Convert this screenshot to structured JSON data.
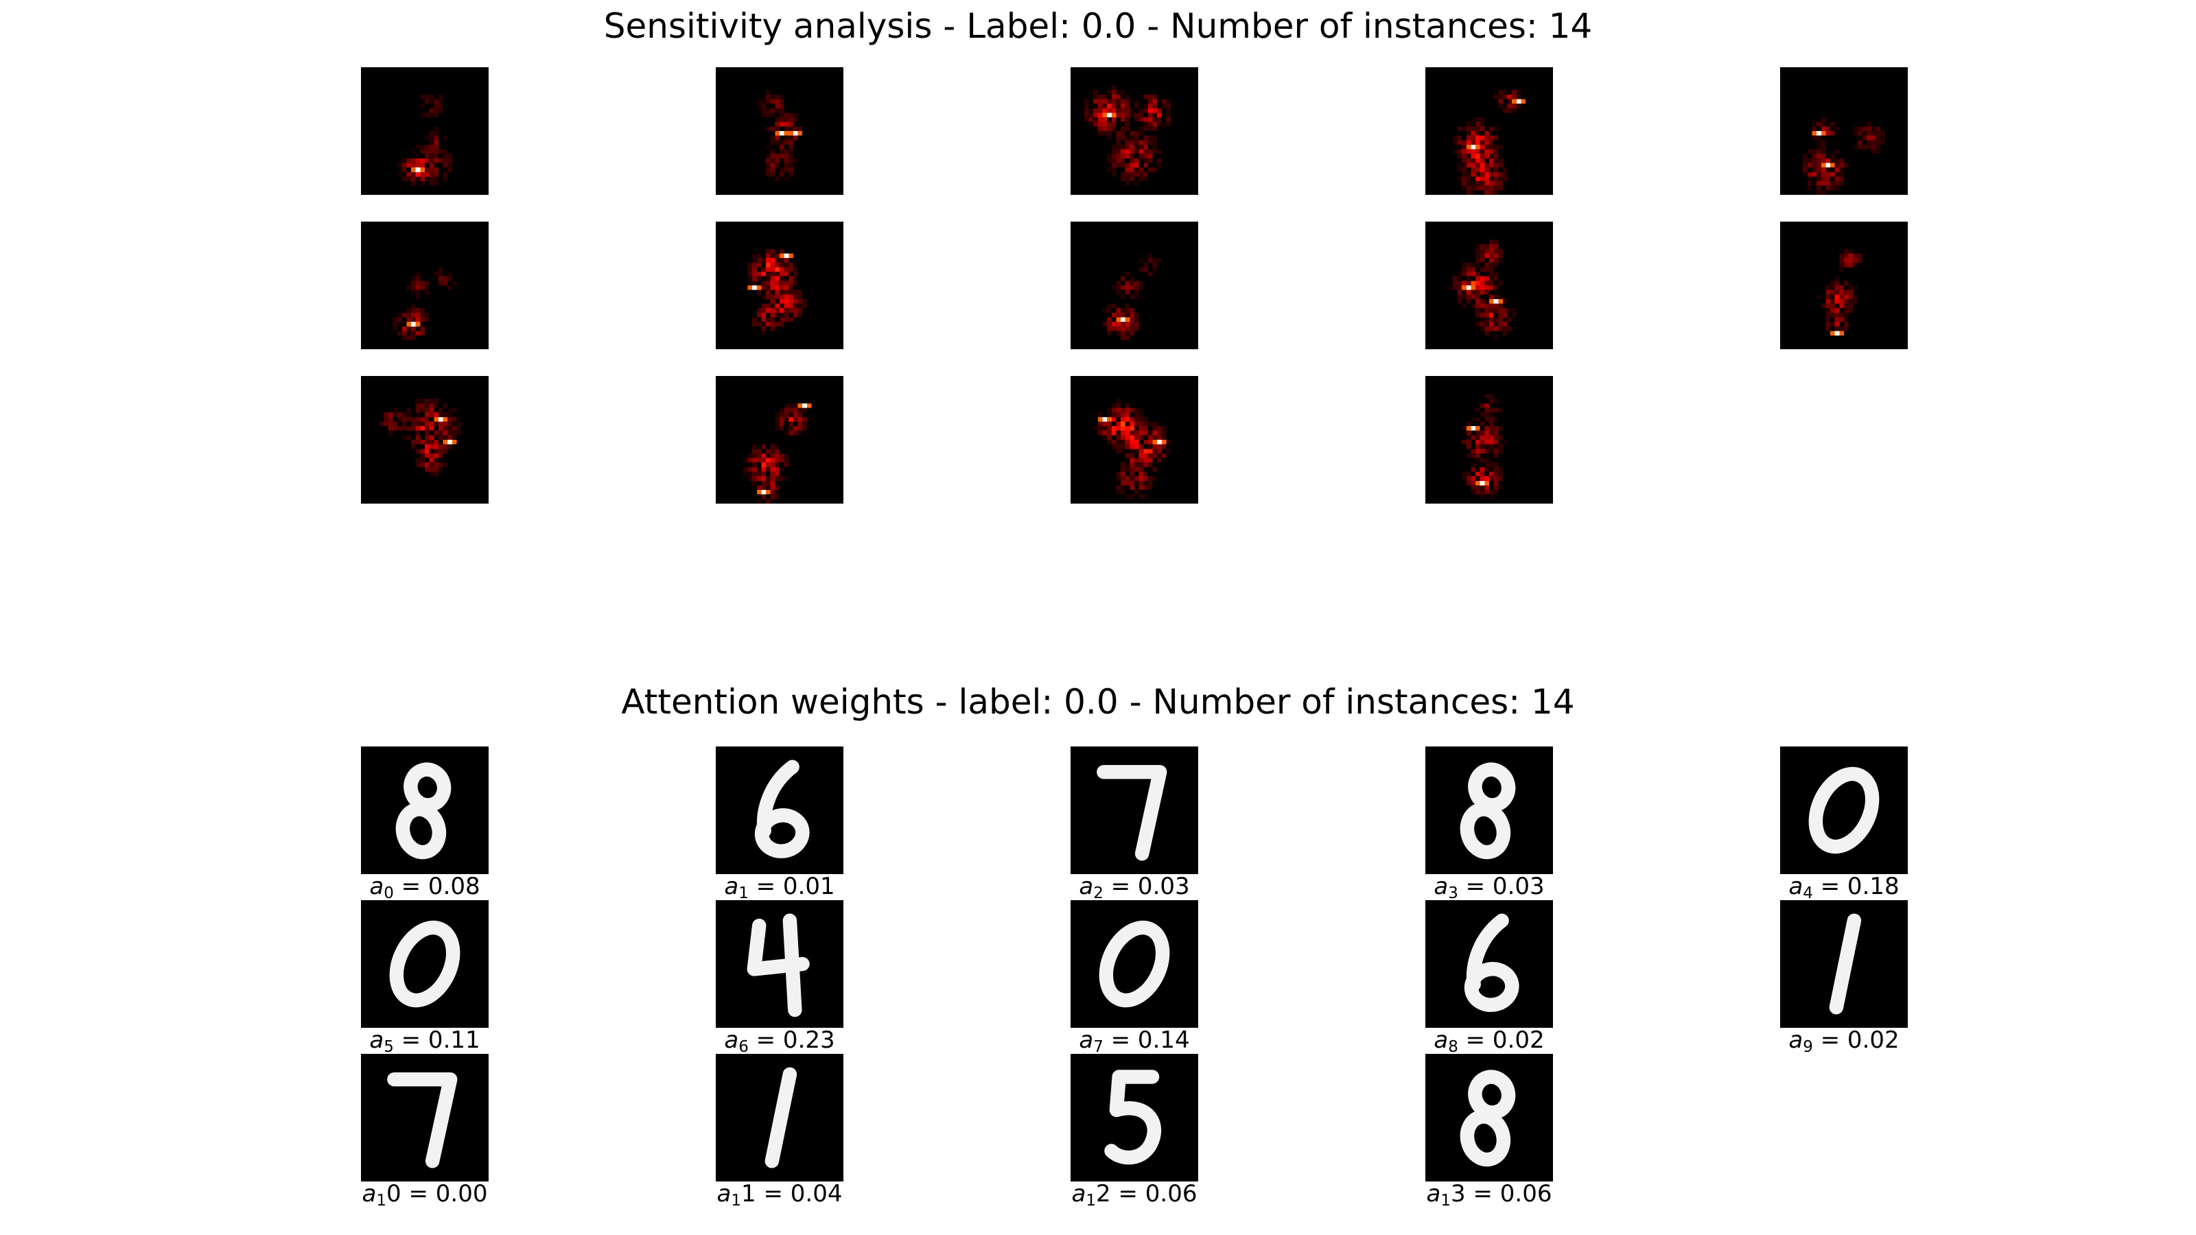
{
  "sensitivity": {
    "title": "Sensitivity analysis - Label: 0.0 - Number of instances: 14",
    "colormap": "hot",
    "tiles": [
      {
        "id": 0,
        "blobs": [
          [
            0.42,
            0.8,
            0.14,
            0.5
          ],
          [
            0.55,
            0.75,
            0.22,
            0.3
          ],
          [
            0.6,
            0.55,
            0.1,
            0.25
          ],
          [
            0.55,
            0.3,
            0.15,
            0.2
          ]
        ],
        "hot": [
          [
            0.45,
            0.8
          ]
        ]
      },
      {
        "id": 1,
        "blobs": [
          [
            0.55,
            0.5,
            0.16,
            0.5
          ],
          [
            0.45,
            0.3,
            0.14,
            0.3
          ],
          [
            0.5,
            0.75,
            0.18,
            0.3
          ]
        ],
        "hot": [
          [
            0.5,
            0.5
          ],
          [
            0.62,
            0.5
          ]
        ]
      },
      {
        "id": 2,
        "blobs": [
          [
            0.3,
            0.35,
            0.22,
            0.6
          ],
          [
            0.65,
            0.35,
            0.18,
            0.5
          ],
          [
            0.5,
            0.7,
            0.25,
            0.5
          ]
        ],
        "hot": [
          [
            0.3,
            0.38
          ]
        ]
      },
      {
        "id": 3,
        "blobs": [
          [
            0.4,
            0.6,
            0.22,
            0.55
          ],
          [
            0.65,
            0.25,
            0.12,
            0.5
          ],
          [
            0.45,
            0.85,
            0.22,
            0.5
          ]
        ],
        "hot": [
          [
            0.38,
            0.62
          ],
          [
            0.72,
            0.25
          ]
        ]
      },
      {
        "id": 4,
        "blobs": [
          [
            0.35,
            0.8,
            0.22,
            0.5
          ],
          [
            0.35,
            0.5,
            0.12,
            0.4
          ],
          [
            0.7,
            0.55,
            0.16,
            0.3
          ]
        ],
        "hot": [
          [
            0.32,
            0.5
          ],
          [
            0.38,
            0.78
          ]
        ]
      },
      {
        "id": 5,
        "blobs": [
          [
            0.4,
            0.8,
            0.16,
            0.55
          ],
          [
            0.45,
            0.5,
            0.12,
            0.25
          ],
          [
            0.65,
            0.45,
            0.12,
            0.2
          ]
        ],
        "hot": [
          [
            0.4,
            0.8
          ]
        ]
      },
      {
        "id": 6,
        "blobs": [
          [
            0.45,
            0.4,
            0.22,
            0.7
          ],
          [
            0.55,
            0.65,
            0.18,
            0.5
          ],
          [
            0.4,
            0.75,
            0.15,
            0.4
          ]
        ],
        "hot": [
          [
            0.55,
            0.28
          ],
          [
            0.32,
            0.52
          ]
        ]
      },
      {
        "id": 7,
        "blobs": [
          [
            0.4,
            0.78,
            0.18,
            0.5
          ],
          [
            0.45,
            0.5,
            0.14,
            0.3
          ],
          [
            0.62,
            0.35,
            0.12,
            0.2
          ]
        ],
        "hot": [
          [
            0.4,
            0.78
          ]
        ]
      },
      {
        "id": 8,
        "blobs": [
          [
            0.4,
            0.5,
            0.22,
            0.6
          ],
          [
            0.55,
            0.75,
            0.18,
            0.5
          ],
          [
            0.5,
            0.25,
            0.14,
            0.4
          ]
        ],
        "hot": [
          [
            0.33,
            0.52
          ],
          [
            0.55,
            0.62
          ]
        ]
      },
      {
        "id": 9,
        "blobs": [
          [
            0.45,
            0.6,
            0.18,
            0.5
          ],
          [
            0.55,
            0.3,
            0.12,
            0.4
          ],
          [
            0.45,
            0.8,
            0.12,
            0.4
          ]
        ],
        "hot": [
          [
            0.44,
            0.88
          ]
        ]
      },
      {
        "id": 10,
        "blobs": [
          [
            0.55,
            0.4,
            0.25,
            0.6
          ],
          [
            0.55,
            0.65,
            0.15,
            0.5
          ],
          [
            0.25,
            0.35,
            0.12,
            0.4
          ]
        ],
        "hot": [
          [
            0.62,
            0.33
          ],
          [
            0.68,
            0.5
          ]
        ]
      },
      {
        "id": 11,
        "blobs": [
          [
            0.4,
            0.7,
            0.2,
            0.6
          ],
          [
            0.6,
            0.35,
            0.15,
            0.5
          ],
          [
            0.4,
            0.9,
            0.12,
            0.4
          ]
        ],
        "hot": [
          [
            0.68,
            0.24
          ],
          [
            0.38,
            0.92
          ]
        ]
      },
      {
        "id": 12,
        "blobs": [
          [
            0.4,
            0.4,
            0.22,
            0.7
          ],
          [
            0.6,
            0.55,
            0.22,
            0.6
          ],
          [
            0.5,
            0.8,
            0.2,
            0.4
          ]
        ],
        "hot": [
          [
            0.28,
            0.33
          ],
          [
            0.68,
            0.52
          ]
        ]
      },
      {
        "id": 13,
        "blobs": [
          [
            0.45,
            0.5,
            0.2,
            0.5
          ],
          [
            0.45,
            0.8,
            0.18,
            0.5
          ],
          [
            0.5,
            0.25,
            0.12,
            0.3
          ]
        ],
        "hot": [
          [
            0.45,
            0.85
          ],
          [
            0.36,
            0.4
          ]
        ]
      }
    ]
  },
  "attention": {
    "title": "Attention weights - label: 0.0 - Number of instances: 14",
    "items": [
      {
        "digit": "8",
        "sym": "a",
        "sub": "0",
        "rest": " = 0.08"
      },
      {
        "digit": "6",
        "sym": "a",
        "sub": "1",
        "rest": " = 0.01"
      },
      {
        "digit": "7",
        "sym": "a",
        "sub": "2",
        "rest": " = 0.03"
      },
      {
        "digit": "8",
        "sym": "a",
        "sub": "3",
        "rest": " = 0.03"
      },
      {
        "digit": "0",
        "sym": "a",
        "sub": "4",
        "rest": " = 0.18"
      },
      {
        "digit": "0",
        "sym": "a",
        "sub": "5",
        "rest": " = 0.11"
      },
      {
        "digit": "4",
        "sym": "a",
        "sub": "6",
        "rest": " = 0.23"
      },
      {
        "digit": "0",
        "sym": "a",
        "sub": "7",
        "rest": " = 0.14"
      },
      {
        "digit": "6",
        "sym": "a",
        "sub": "8",
        "rest": " = 0.02"
      },
      {
        "digit": "1",
        "sym": "a",
        "sub": "9",
        "rest": " = 0.02"
      },
      {
        "digit": "7",
        "sym": "a",
        "sub": "1",
        "rest": "0 = 0.00"
      },
      {
        "digit": "1",
        "sym": "a",
        "sub": "1",
        "rest": "1 = 0.04"
      },
      {
        "digit": "5",
        "sym": "a",
        "sub": "1",
        "rest": "2 = 0.06"
      },
      {
        "digit": "8",
        "sym": "a",
        "sub": "1",
        "rest": "3 = 0.06"
      }
    ]
  }
}
